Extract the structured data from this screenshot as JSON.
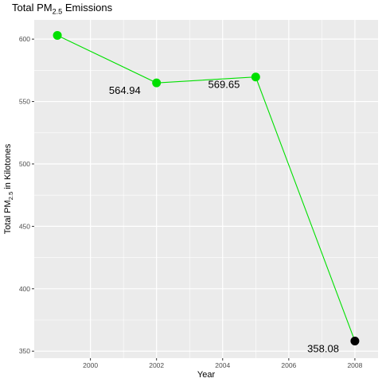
{
  "chart_data": {
    "type": "line",
    "title": {
      "main": "Total PM",
      "sub": "2.5",
      "rest": " Emissions"
    },
    "xlabel": "Year",
    "ylabel": {
      "main": "Total PM",
      "sub": "2.5",
      "rest": " in Kilotones"
    },
    "xlim": [
      1998.3,
      2008.7
    ],
    "ylim": [
      344.4,
      615.4
    ],
    "xticks": [
      2000,
      2002,
      2004,
      2006,
      2008
    ],
    "yticks": [
      350,
      400,
      450,
      500,
      550,
      600
    ],
    "x": [
      1999,
      2002,
      2005,
      2008
    ],
    "y": [
      603,
      564.94,
      569.65,
      358.08
    ],
    "data_labels": [
      "",
      "564.94",
      "569.65",
      "358.08"
    ],
    "point_colors": [
      "#00e000",
      "#00e000",
      "#00e000",
      "#000000"
    ],
    "line_color": "#00e000",
    "grid": true,
    "legend": "none"
  }
}
